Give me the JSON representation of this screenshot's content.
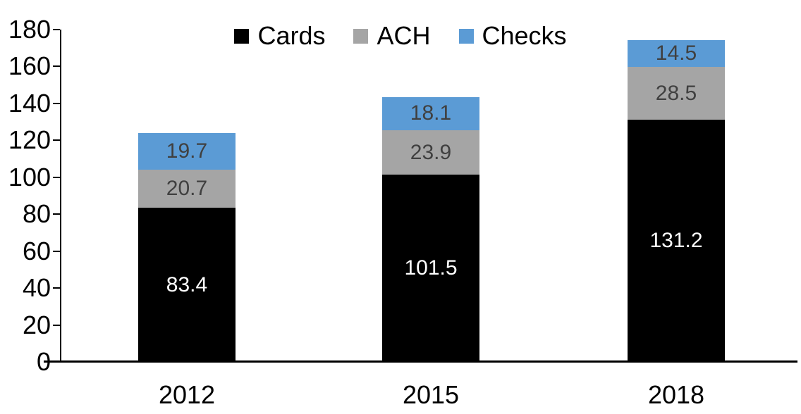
{
  "chart_data": {
    "type": "bar",
    "stacked": true,
    "title": "",
    "categories": [
      "2012",
      "2015",
      "2018"
    ],
    "series": [
      {
        "name": "Cards",
        "color": "#000000",
        "label_color": "#FFFFFF",
        "values": [
          83.4,
          101.5,
          131.2
        ]
      },
      {
        "name": "ACH",
        "color": "#A5A5A5",
        "label_color": "#404040",
        "values": [
          20.7,
          23.9,
          28.5
        ]
      },
      {
        "name": "Checks",
        "color": "#5B9BD5",
        "label_color": "#404040",
        "values": [
          19.7,
          18.1,
          14.5
        ]
      }
    ],
    "ylim": [
      0,
      180
    ],
    "yticks": [
      0,
      20,
      40,
      60,
      80,
      100,
      120,
      140,
      160,
      180
    ],
    "legend_position": "top-center",
    "grid": false,
    "axis_color": "#000000",
    "background": "#FFFFFF"
  }
}
